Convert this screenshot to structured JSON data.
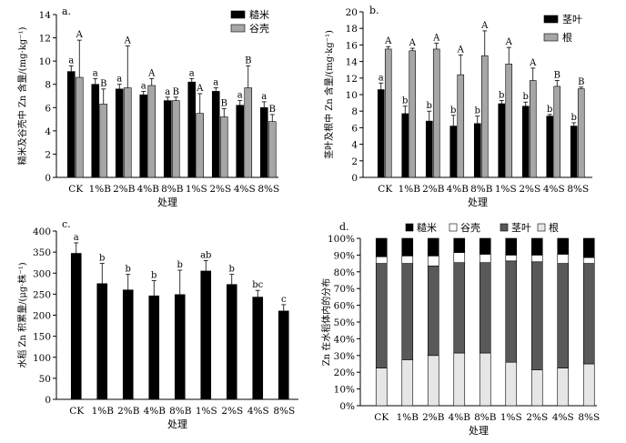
{
  "chart_data": [
    {
      "id": "a",
      "type": "bar",
      "panel_label": "a.",
      "title": "",
      "xlabel": "处理",
      "ylabel": "糙米及谷壳中 Zn 含量/(mg·kg⁻¹)",
      "ylim": [
        0,
        14
      ],
      "yticks": [
        0,
        2,
        4,
        6,
        8,
        10,
        12,
        14
      ],
      "categories": [
        "CK",
        "1%B",
        "2%B",
        "4%B",
        "8%B",
        "1%S",
        "2%S",
        "4%S",
        "8%S"
      ],
      "legend_position": "top-right",
      "series": [
        {
          "name": "糙米",
          "color": "#000000",
          "values": [
            9.1,
            8.0,
            7.6,
            7.1,
            6.6,
            8.2,
            7.4,
            6.2,
            6.0
          ],
          "errors": [
            0.5,
            0.5,
            0.4,
            0.3,
            0.3,
            0.3,
            0.3,
            0.4,
            0.5
          ],
          "letters": [
            "a",
            "a",
            "a",
            "a",
            "a",
            "a",
            "a",
            "a",
            "a"
          ]
        },
        {
          "name": "谷壳",
          "color": "#a6a6a6",
          "values": [
            8.6,
            6.3,
            7.7,
            7.9,
            6.6,
            5.5,
            5.2,
            7.7,
            4.8
          ],
          "errors": [
            3.2,
            1.3,
            3.6,
            0.6,
            0.3,
            1.7,
            0.7,
            1.9,
            0.6
          ],
          "letters": [
            "A",
            "B",
            "A",
            "A",
            "B",
            "A",
            "B",
            "B",
            "B"
          ]
        }
      ]
    },
    {
      "id": "b",
      "type": "bar",
      "panel_label": "b.",
      "title": "",
      "xlabel": "处理",
      "ylabel": "茎叶及根中 Zn 含量/(mg·kg⁻¹)",
      "ylim": [
        0,
        20
      ],
      "yticks": [
        0,
        2,
        4,
        6,
        8,
        10,
        12,
        14,
        16,
        18,
        20
      ],
      "categories": [
        "CK",
        "1%B",
        "2%B",
        "4%B",
        "8%B",
        "1%S",
        "2%S",
        "4%S",
        "8%S"
      ],
      "legend_position": "top-right",
      "series": [
        {
          "name": "茎叶",
          "color": "#000000",
          "values": [
            10.6,
            7.7,
            6.8,
            6.2,
            6.5,
            8.9,
            8.6,
            7.4,
            6.2
          ],
          "errors": [
            0.8,
            0.9,
            1.2,
            1.3,
            0.9,
            0.4,
            0.5,
            0.2,
            0.4
          ],
          "letters": [
            "a",
            "b",
            "b",
            "b",
            "b",
            "b",
            "b",
            "b",
            "b"
          ]
        },
        {
          "name": "根",
          "color": "#a6a6a6",
          "values": [
            15.5,
            15.3,
            15.5,
            12.4,
            14.7,
            13.7,
            11.7,
            11.0,
            10.7
          ],
          "errors": [
            0.3,
            0.3,
            0.7,
            2.4,
            3.0,
            2.0,
            1.5,
            0.7,
            0.2
          ],
          "letters": [
            "A",
            "A",
            "A",
            "A",
            "A",
            "A",
            "A",
            "B",
            "B"
          ]
        }
      ]
    },
    {
      "id": "c",
      "type": "bar",
      "panel_label": "c.",
      "title": "",
      "xlabel": "处理",
      "ylabel": "水稻 Zn 积累量/(μg·株⁻¹)",
      "ylim": [
        0,
        400
      ],
      "yticks": [
        0,
        50,
        100,
        150,
        200,
        250,
        300,
        350,
        400
      ],
      "categories": [
        "CK",
        "1%B",
        "2%B",
        "4%B",
        "8%B",
        "1%S",
        "2%S",
        "4%S",
        "8%S"
      ],
      "series": [
        {
          "name": "水稻 Zn 积累量",
          "color": "#000000",
          "values": [
            347,
            275,
            260,
            246,
            249,
            305,
            273,
            243,
            210
          ],
          "errors": [
            25,
            48,
            37,
            36,
            58,
            25,
            24,
            16,
            15
          ],
          "letters": [
            "a",
            "b",
            "b",
            "b",
            "b",
            "ab",
            "b",
            "bc",
            "c"
          ]
        }
      ]
    },
    {
      "id": "d",
      "type": "bar",
      "stacked": true,
      "panel_label": "d.",
      "title": "",
      "xlabel": "处理",
      "ylabel": "Zn 在水稻体内的分布",
      "ylim": [
        0,
        100
      ],
      "yticks": [
        "0%",
        "10%",
        "20%",
        "30%",
        "40%",
        "50%",
        "60%",
        "70%",
        "80%",
        "90%",
        "100%"
      ],
      "categories": [
        "CK",
        "1%B",
        "2%B",
        "4%B",
        "8%B",
        "1%S",
        "2%S",
        "4%S",
        "8%S"
      ],
      "legend_position": "top",
      "series": [
        {
          "name": "根",
          "color": "#e6e6e6",
          "values": [
            22.5,
            27.5,
            30.0,
            31.5,
            31.5,
            26.0,
            21.5,
            22.5,
            25.0
          ]
        },
        {
          "name": "茎叶",
          "color": "#595959",
          "values": [
            62.5,
            57.5,
            53.5,
            54.0,
            54.0,
            60.5,
            64.5,
            62.5,
            60.0
          ]
        },
        {
          "name": "谷壳",
          "color": "#ffffff",
          "values": [
            4.0,
            4.5,
            6.0,
            6.0,
            5.0,
            3.5,
            4.0,
            5.5,
            3.5
          ]
        },
        {
          "name": "糙米",
          "color": "#000000",
          "values": [
            11.0,
            10.5,
            10.5,
            8.5,
            9.5,
            10.0,
            10.0,
            9.5,
            11.5
          ]
        }
      ]
    }
  ]
}
